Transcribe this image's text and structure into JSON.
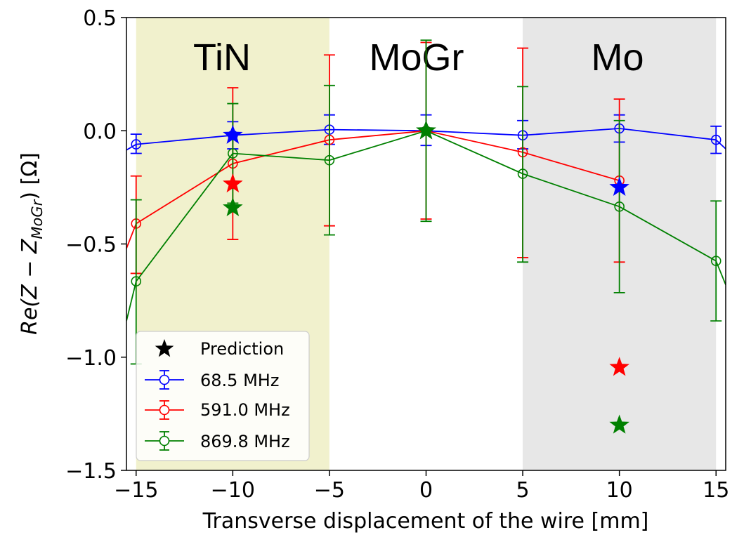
{
  "chart_data": {
    "type": "line",
    "xlabel": "Transverse displacement of the wire [mm]",
    "ylabel_prefix": "Re(Z − Z",
    "ylabel_subscript": "MoGr",
    "ylabel_suffix": ") [Ω]",
    "xlim": [
      -15.5,
      15.5
    ],
    "ylim": [
      -1.5,
      0.5
    ],
    "xticks": [
      -15,
      -10,
      -5,
      0,
      5,
      10,
      15
    ],
    "xtick_labels": [
      "−15",
      "−10",
      "−5",
      "0",
      "5",
      "10",
      "15"
    ],
    "yticks": [
      0.5,
      0.0,
      -0.5,
      -1.0,
      -1.5
    ],
    "ytick_labels": [
      "0.5",
      "0.0",
      "−0.5",
      "−1.0",
      "−1.5"
    ],
    "regions": [
      {
        "name": "TiN",
        "x_range": [
          -15,
          -5
        ],
        "color": "#efefc4"
      },
      {
        "name": "MoGr",
        "x_range": [
          -5,
          5
        ],
        "color": "#ffffff"
      },
      {
        "name": "Mo",
        "x_range": [
          5,
          15
        ],
        "color": "#e3e3e3"
      }
    ],
    "series": [
      {
        "name": "68.5 MHz",
        "color": "#0000ff",
        "x": [
          -15,
          -10,
          -5,
          0,
          5,
          10,
          15
        ],
        "y": [
          -0.06,
          -0.02,
          0.005,
          0.0,
          -0.02,
          0.01,
          -0.04
        ],
        "err_low": [
          -0.1,
          -0.08,
          -0.06,
          -0.065,
          -0.08,
          -0.05,
          -0.1
        ],
        "err_high": [
          -0.015,
          0.04,
          0.07,
          0.07,
          0.045,
          0.07,
          0.02
        ]
      },
      {
        "name": "591.0 MHz",
        "color": "#ff0000",
        "x": [
          -15,
          -10,
          -5,
          0,
          5,
          10
        ],
        "y": [
          -0.41,
          -0.145,
          -0.04,
          0.0,
          -0.095,
          -0.22
        ],
        "err_low": [
          -0.63,
          -0.48,
          -0.42,
          -0.39,
          -0.56,
          -0.58
        ],
        "err_high": [
          -0.2,
          0.19,
          0.335,
          0.39,
          0.365,
          0.14
        ]
      },
      {
        "name": "869.8 MHz",
        "color": "#008000",
        "x": [
          -15,
          -10,
          -5,
          0,
          5,
          10,
          15
        ],
        "y": [
          -0.665,
          -0.1,
          -0.13,
          0.0,
          -0.19,
          -0.335,
          -0.575
        ],
        "err_low": [
          -1.03,
          -0.32,
          -0.46,
          -0.4,
          -0.58,
          -0.715,
          -0.84
        ],
        "err_high": [
          -0.305,
          0.12,
          0.2,
          0.4,
          0.195,
          0.045,
          -0.31
        ]
      }
    ],
    "series_extrapolation": [
      {
        "name": "68.5 MHz",
        "color": "#0000ff",
        "left_y": -0.085,
        "right_y": -0.08
      },
      {
        "name": "591.0 MHz",
        "color": "#ff0000",
        "left_y": -0.52,
        "right_y": null
      },
      {
        "name": "869.8 MHz",
        "color": "#008000",
        "left_y": -0.84,
        "right_y": -0.68
      }
    ],
    "predictions": [
      {
        "series": "68.5 MHz",
        "color": "#0000ff",
        "x": -10,
        "y": -0.02
      },
      {
        "series": "591.0 MHz",
        "color": "#ff0000",
        "x": -10,
        "y": -0.235
      },
      {
        "series": "869.8 MHz",
        "color": "#008000",
        "x": -10,
        "y": -0.34
      },
      {
        "series": "prediction",
        "color": "#333333",
        "x": 0,
        "y": 0.0
      },
      {
        "series": "869.8 MHz",
        "color": "#008000",
        "x": 0,
        "y": 0.0
      },
      {
        "series": "68.5 MHz",
        "color": "#0000ff",
        "x": 10,
        "y": -0.25
      },
      {
        "series": "591.0 MHz",
        "color": "#ff0000",
        "x": 10,
        "y": -1.045
      },
      {
        "series": "869.8 MHz",
        "color": "#008000",
        "x": 10,
        "y": -1.3
      }
    ],
    "legend": {
      "placement": "lower-left",
      "entries": [
        {
          "label": "Prediction",
          "marker": "star",
          "color": "#000000"
        },
        {
          "label": "68.5 MHz",
          "marker": "circle-errorbar",
          "color": "#0000ff"
        },
        {
          "label": "591.0 MHz",
          "marker": "circle-errorbar",
          "color": "#ff0000"
        },
        {
          "label": "869.8 MHz",
          "marker": "circle-errorbar",
          "color": "#008000"
        }
      ]
    }
  }
}
